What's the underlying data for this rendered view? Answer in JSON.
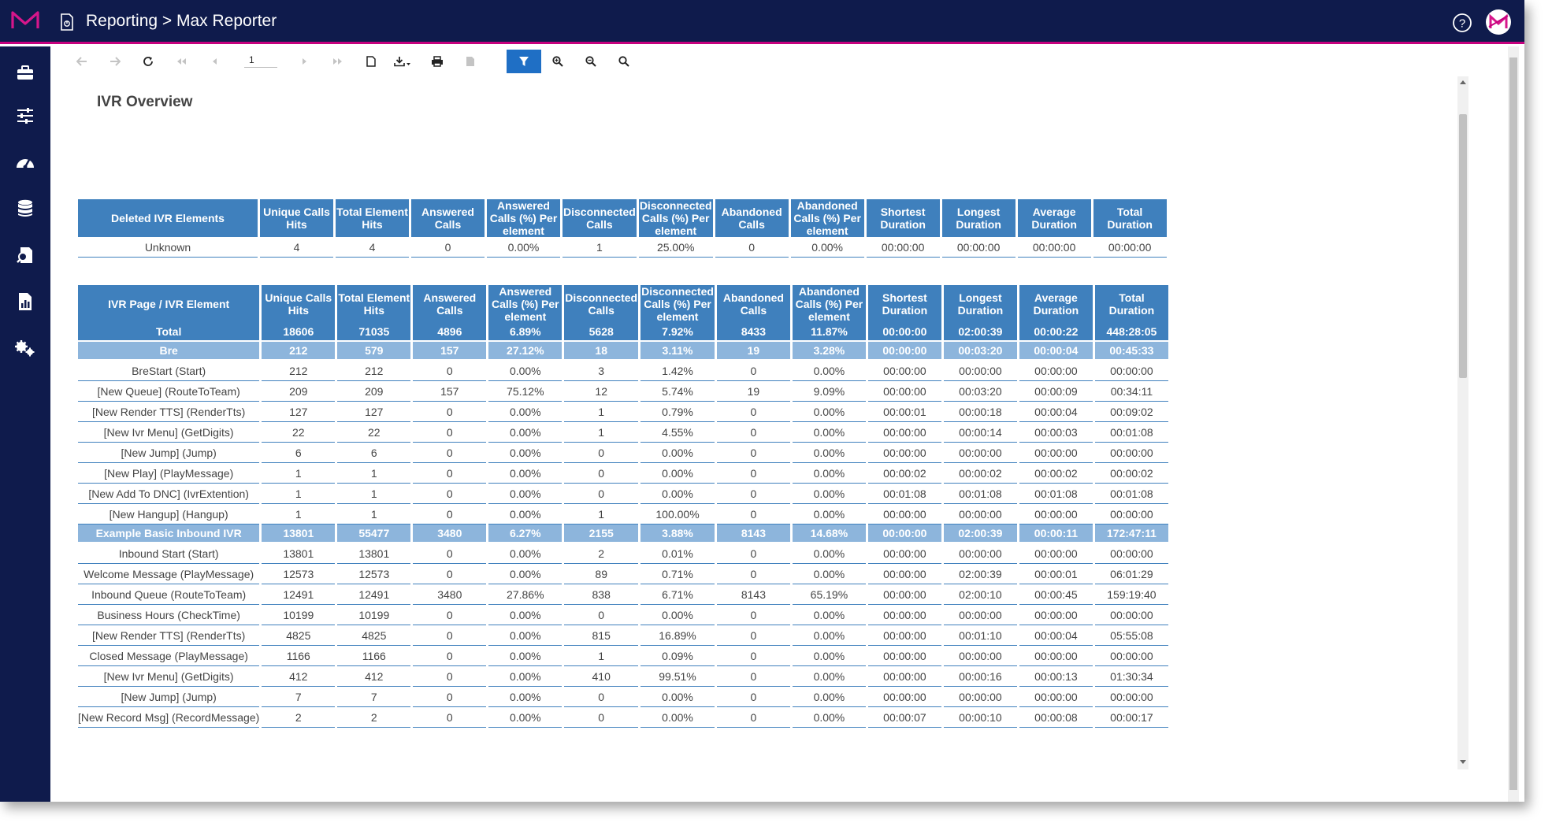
{
  "header": {
    "title": "Reporting > Max Reporter",
    "brand_color": "#c6007e",
    "bar_color": "#0f1b4c"
  },
  "sidebar": {
    "items": [
      {
        "name": "briefcase-icon"
      },
      {
        "name": "sliders-icon"
      },
      {
        "name": "dashboard-gauge-icon"
      },
      {
        "name": "database-icon"
      },
      {
        "name": "search-document-icon"
      },
      {
        "name": "report-chart-icon"
      },
      {
        "name": "settings-gears-icon"
      }
    ]
  },
  "toolbar": {
    "page_value": "1",
    "active_color": "#1f6fc5"
  },
  "report": {
    "title": "IVR Overview",
    "header_color": "#3f80bd",
    "group_color": "#8db5dc"
  },
  "deleted_table": {
    "headers": [
      "Deleted IVR Elements",
      "Unique Calls Hits",
      "Total Element Hits",
      "Answered Calls",
      "Answered Calls (%) Per element",
      "Disconnected Calls",
      "Disconnected Calls (%) Per element",
      "Abandoned Calls",
      "Abandoned Calls (%) Per element",
      "Shortest Duration",
      "Longest Duration",
      "Average Duration",
      "Total Duration"
    ],
    "rows": [
      {
        "type": "data",
        "cells": [
          "Unknown",
          "4",
          "4",
          "0",
          "0.00%",
          "1",
          "25.00%",
          "0",
          "0.00%",
          "00:00:00",
          "00:00:00",
          "00:00:00",
          "00:00:00"
        ]
      }
    ]
  },
  "ivr_table": {
    "headers": [
      "IVR Page / IVR Element",
      "Unique Calls Hits",
      "Total Element Hits",
      "Answered Calls",
      "Answered Calls (%) Per element",
      "Disconnected Calls",
      "Disconnected Calls (%) Per element",
      "Abandoned Calls",
      "Abandoned Calls (%) Per element",
      "Shortest Duration",
      "Longest Duration",
      "Average Duration",
      "Total Duration"
    ],
    "rows": [
      {
        "type": "total",
        "cells": [
          "Total",
          "18606",
          "71035",
          "4896",
          "6.89%",
          "5628",
          "7.92%",
          "8433",
          "11.87%",
          "00:00:00",
          "02:00:39",
          "00:00:22",
          "448:28:05"
        ]
      },
      {
        "type": "group",
        "cells": [
          "Bre",
          "212",
          "579",
          "157",
          "27.12%",
          "18",
          "3.11%",
          "19",
          "3.28%",
          "00:00:00",
          "00:03:20",
          "00:00:04",
          "00:45:33"
        ]
      },
      {
        "type": "data",
        "cells": [
          "BreStart (Start)",
          "212",
          "212",
          "0",
          "0.00%",
          "3",
          "1.42%",
          "0",
          "0.00%",
          "00:00:00",
          "00:00:00",
          "00:00:00",
          "00:00:00"
        ]
      },
      {
        "type": "data",
        "cells": [
          "[New Queue] (RouteToTeam)",
          "209",
          "209",
          "157",
          "75.12%",
          "12",
          "5.74%",
          "19",
          "9.09%",
          "00:00:00",
          "00:03:20",
          "00:00:09",
          "00:34:11"
        ]
      },
      {
        "type": "data",
        "cells": [
          "[New Render TTS] (RenderTts)",
          "127",
          "127",
          "0",
          "0.00%",
          "1",
          "0.79%",
          "0",
          "0.00%",
          "00:00:01",
          "00:00:18",
          "00:00:04",
          "00:09:02"
        ]
      },
      {
        "type": "data",
        "cells": [
          "[New Ivr Menu] (GetDigits)",
          "22",
          "22",
          "0",
          "0.00%",
          "1",
          "4.55%",
          "0",
          "0.00%",
          "00:00:00",
          "00:00:14",
          "00:00:03",
          "00:01:08"
        ]
      },
      {
        "type": "data",
        "cells": [
          "[New Jump] (Jump)",
          "6",
          "6",
          "0",
          "0.00%",
          "0",
          "0.00%",
          "0",
          "0.00%",
          "00:00:00",
          "00:00:00",
          "00:00:00",
          "00:00:00"
        ]
      },
      {
        "type": "data",
        "cells": [
          "[New Play] (PlayMessage)",
          "1",
          "1",
          "0",
          "0.00%",
          "0",
          "0.00%",
          "0",
          "0.00%",
          "00:00:02",
          "00:00:02",
          "00:00:02",
          "00:00:02"
        ]
      },
      {
        "type": "data",
        "cells": [
          "[New Add To DNC] (IvrExtention)",
          "1",
          "1",
          "0",
          "0.00%",
          "0",
          "0.00%",
          "0",
          "0.00%",
          "00:01:08",
          "00:01:08",
          "00:01:08",
          "00:01:08"
        ]
      },
      {
        "type": "data",
        "cells": [
          "[New Hangup] (Hangup)",
          "1",
          "1",
          "0",
          "0.00%",
          "1",
          "100.00%",
          "0",
          "0.00%",
          "00:00:00",
          "00:00:00",
          "00:00:00",
          "00:00:00"
        ]
      },
      {
        "type": "group",
        "cells": [
          "Example Basic Inbound IVR",
          "13801",
          "55477",
          "3480",
          "6.27%",
          "2155",
          "3.88%",
          "8143",
          "14.68%",
          "00:00:00",
          "02:00:39",
          "00:00:11",
          "172:47:11"
        ]
      },
      {
        "type": "data",
        "cells": [
          "Inbound Start (Start)",
          "13801",
          "13801",
          "0",
          "0.00%",
          "2",
          "0.01%",
          "0",
          "0.00%",
          "00:00:00",
          "00:00:00",
          "00:00:00",
          "00:00:00"
        ]
      },
      {
        "type": "data",
        "cells": [
          "Welcome Message (PlayMessage)",
          "12573",
          "12573",
          "0",
          "0.00%",
          "89",
          "0.71%",
          "0",
          "0.00%",
          "00:00:00",
          "02:00:39",
          "00:00:01",
          "06:01:29"
        ]
      },
      {
        "type": "data",
        "cells": [
          "Inbound Queue (RouteToTeam)",
          "12491",
          "12491",
          "3480",
          "27.86%",
          "838",
          "6.71%",
          "8143",
          "65.19%",
          "00:00:00",
          "02:00:10",
          "00:00:45",
          "159:19:40"
        ]
      },
      {
        "type": "data",
        "cells": [
          "Business Hours (CheckTime)",
          "10199",
          "10199",
          "0",
          "0.00%",
          "0",
          "0.00%",
          "0",
          "0.00%",
          "00:00:00",
          "00:00:00",
          "00:00:00",
          "00:00:00"
        ]
      },
      {
        "type": "data",
        "cells": [
          "[New Render TTS] (RenderTts)",
          "4825",
          "4825",
          "0",
          "0.00%",
          "815",
          "16.89%",
          "0",
          "0.00%",
          "00:00:00",
          "00:01:10",
          "00:00:04",
          "05:55:08"
        ]
      },
      {
        "type": "data",
        "cells": [
          "Closed Message (PlayMessage)",
          "1166",
          "1166",
          "0",
          "0.00%",
          "1",
          "0.09%",
          "0",
          "0.00%",
          "00:00:00",
          "00:00:00",
          "00:00:00",
          "00:00:00"
        ]
      },
      {
        "type": "data",
        "cells": [
          "[New Ivr Menu] (GetDigits)",
          "412",
          "412",
          "0",
          "0.00%",
          "410",
          "99.51%",
          "0",
          "0.00%",
          "00:00:00",
          "00:00:16",
          "00:00:13",
          "01:30:34"
        ]
      },
      {
        "type": "data",
        "cells": [
          "[New Jump] (Jump)",
          "7",
          "7",
          "0",
          "0.00%",
          "0",
          "0.00%",
          "0",
          "0.00%",
          "00:00:00",
          "00:00:00",
          "00:00:00",
          "00:00:00"
        ]
      },
      {
        "type": "data",
        "cells": [
          "[New Record Msg] (RecordMessage)",
          "2",
          "2",
          "0",
          "0.00%",
          "0",
          "0.00%",
          "0",
          "0.00%",
          "00:00:07",
          "00:00:10",
          "00:00:08",
          "00:00:17"
        ]
      }
    ]
  }
}
